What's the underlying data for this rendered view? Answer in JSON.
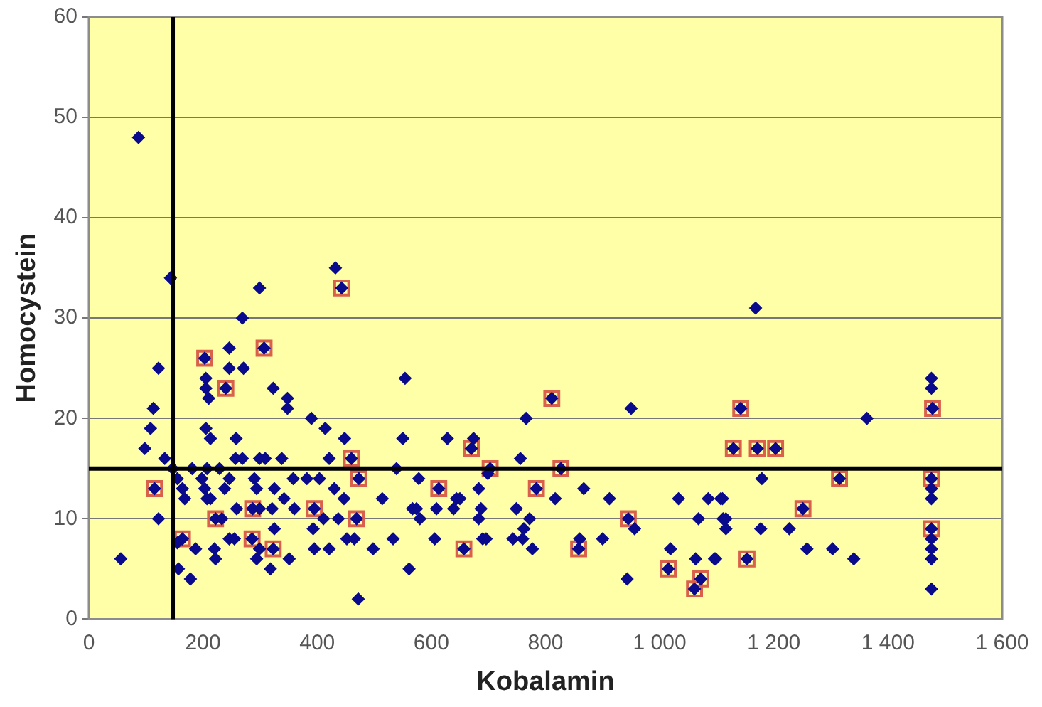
{
  "chart_data": {
    "type": "scatter",
    "xlabel": "Kobalamin",
    "ylabel": "Homocystein",
    "xlim": [
      0,
      1600
    ],
    "xticks": [
      0,
      200,
      400,
      600,
      800,
      {
        "value": 1000,
        "label": "1 000"
      },
      {
        "value": 1200,
        "label": "1 200"
      },
      {
        "value": 1400,
        "label": "1 400"
      },
      {
        "value": 1600,
        "label": "1 600"
      }
    ],
    "ylim": [
      0,
      60
    ],
    "yticks": [
      0,
      10,
      20,
      30,
      40,
      50,
      60
    ],
    "grid": "y",
    "legend": false,
    "ref_lines": [
      {
        "axis": "y",
        "value": 15,
        "color": "#000000"
      },
      {
        "axis": "x",
        "value": 147,
        "color": "#000000"
      }
    ],
    "series": [
      {
        "type": "scatter",
        "color": "#0a0a8c",
        "marker": "diamond",
        "x": [
          87,
          143,
          299,
          432,
          443,
          269,
          203,
          246,
          307,
          122,
          246,
          271,
          205,
          205,
          210,
          240,
          323,
          348,
          348,
          113,
          108,
          98,
          205,
          213,
          258,
          390,
          414,
          448,
          550,
          554,
          460,
          133,
          257,
          269,
          299,
          309,
          338,
          421,
          147,
          181,
          207,
          229,
          539,
          473,
          115,
          155,
          164,
          168,
          198,
          203,
          207,
          213,
          246,
          238,
          290,
          294,
          358,
          382,
          404,
          325,
          342,
          430,
          447,
          514,
          567,
          122,
          222,
          233,
          259,
          287,
          299,
          321,
          360,
          395,
          393,
          411,
          469,
          437,
          164,
          155,
          187,
          220,
          222,
          246,
          255,
          286,
          299,
          294,
          325,
          323,
          318,
          351,
          395,
          421,
          452,
          465,
          498,
          533,
          561,
          56,
          157,
          178,
          472,
          811,
          950,
          766,
          628,
          674,
          670,
          756,
          703,
          699,
          827,
          578,
          613,
          644,
          650,
          683,
          784,
          817,
          867,
          912,
          1033,
          1085,
          1110,
          574,
          580,
          609,
          639,
          687,
          683,
          749,
          772,
          945,
          956,
          1068,
          1111,
          606,
          690,
          696,
          743,
          762,
          760,
          777,
          657,
          858,
          860,
          900,
          1019,
          1063,
          1096,
          1015,
          943,
          1072,
          1061,
          1168,
          1142,
          1363,
          1476,
          1476,
          1478,
          1129,
          1171,
          1203,
          1179,
          1315,
          1476,
          1476,
          1476,
          1251,
          1107,
          1116,
          1116,
          1177,
          1227,
          1476,
          1476,
          1476,
          1476,
          1153,
          1258,
          1303,
          1340,
          1476,
          1098
        ],
        "values": [
          48,
          34,
          33,
          35,
          33,
          30,
          26,
          27,
          27,
          25,
          25,
          25,
          24,
          23,
          22,
          23,
          23,
          22,
          21,
          21,
          19,
          17,
          19,
          18,
          18,
          20,
          19,
          18,
          18,
          24,
          16,
          16,
          16,
          16,
          16,
          16,
          16,
          16,
          15,
          15,
          15,
          15,
          15,
          14,
          13,
          14,
          13,
          12,
          14,
          13,
          12,
          12,
          14,
          13,
          14,
          13,
          14,
          14,
          14,
          13,
          12,
          13,
          12,
          12,
          11,
          10,
          10,
          10,
          11,
          11,
          11,
          11,
          11,
          11,
          9,
          10,
          10,
          10,
          8,
          7.6,
          7,
          7,
          6,
          8,
          8,
          8,
          7,
          6,
          9,
          7,
          5,
          6,
          7,
          7,
          8,
          8,
          7,
          8,
          5,
          6,
          5,
          4,
          2,
          22,
          21,
          20,
          18,
          18,
          17,
          16,
          15,
          14.5,
          15,
          14,
          13,
          12,
          12,
          13,
          13,
          12,
          13,
          12,
          12,
          12,
          12,
          11,
          10,
          11,
          11,
          11,
          10,
          11,
          10,
          10,
          9,
          10,
          10,
          8,
          8,
          8,
          8,
          9,
          8,
          7,
          7,
          7,
          8,
          8,
          7,
          6,
          6,
          5,
          4,
          4,
          3,
          31,
          21,
          20,
          24,
          23,
          21,
          17,
          17,
          17,
          14,
          14,
          14,
          13,
          12,
          11,
          12,
          10,
          9,
          9,
          9,
          9,
          8,
          7,
          6,
          6,
          7,
          7,
          6,
          3,
          6
        ]
      },
      {
        "type": "scatter",
        "color": "#d9604a",
        "marker": "square",
        "x": [
          443,
          203,
          307,
          240,
          460,
          473,
          115,
          222,
          287,
          395,
          469,
          164,
          286,
          323,
          811,
          670,
          703,
          827,
          613,
          784,
          945,
          657,
          858,
          1015,
          1072,
          1061,
          1142,
          1478,
          1129,
          1171,
          1203,
          1315,
          1476,
          1251,
          1476,
          1153
        ],
        "values": [
          33,
          26,
          27,
          23,
          16,
          14,
          13,
          10,
          11,
          11,
          10,
          8,
          8,
          7,
          22,
          17,
          15,
          15,
          13,
          13,
          10,
          7,
          7,
          5,
          4,
          3,
          21,
          21,
          17,
          17,
          17,
          14,
          14,
          11,
          9,
          6
        ]
      }
    ]
  }
}
